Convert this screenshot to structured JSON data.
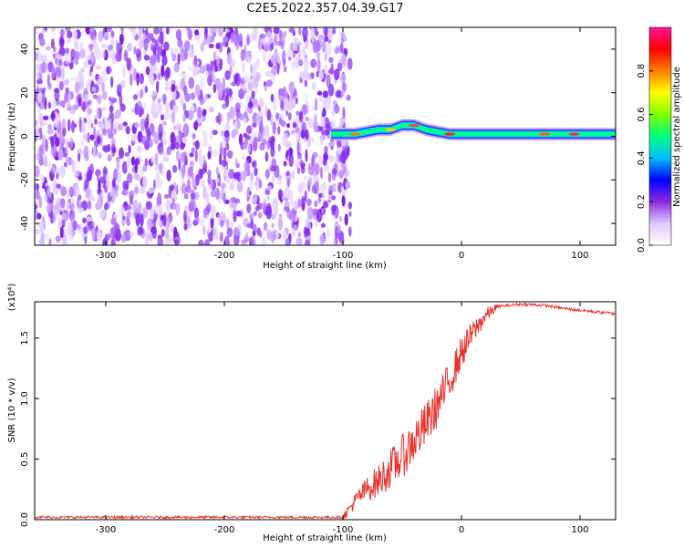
{
  "title": "C2E5.2022.357.04.39.G17",
  "chart_data": [
    {
      "type": "heatmap",
      "xlabel": "Height of straight line (km)",
      "ylabel": "Frequency (Hz)",
      "xlim": [
        -360,
        130
      ],
      "ylim": [
        -50,
        50
      ],
      "xticks": [
        -300,
        -200,
        -100,
        0,
        100
      ],
      "yticks": [
        -40,
        -20,
        0,
        20,
        40
      ],
      "colorbar": {
        "label": "Normalized spectral amplitude",
        "range": [
          0,
          1
        ],
        "ticks": [
          0.0,
          0.2,
          0.4,
          0.6,
          0.8
        ],
        "colors": [
          "#ffffff",
          "#e0c8ff",
          "#8a2be2",
          "#0000ff",
          "#00bfff",
          "#00ff7f",
          "#7fff00",
          "#ffff00",
          "#ff7f00",
          "#ff0000",
          "#ff1493"
        ]
      },
      "noise_region_x": [
        -360,
        -100
      ],
      "signal_ridge": {
        "x": [
          -110,
          -100,
          -90,
          -80,
          -70,
          -60,
          -50,
          -40,
          -30,
          -20,
          -10,
          0,
          20,
          40,
          60,
          80,
          100,
          130
        ],
        "y": [
          1,
          1,
          1,
          2,
          3,
          3,
          5,
          5,
          3,
          2,
          1,
          1,
          1,
          1,
          1,
          1,
          1,
          1
        ]
      }
    },
    {
      "type": "line",
      "xlabel": "Height of straight line (km)",
      "ylabel": "SNR (10 * v/v)",
      "yscale_label": "(x10⁴)",
      "xlim": [
        -360,
        130
      ],
      "ylim": [
        0,
        1.8
      ],
      "xticks": [
        -300,
        -200,
        -100,
        0,
        100
      ],
      "yticks": [
        0.0,
        0.5,
        1.0,
        1.5
      ],
      "line_color": "#e8322c",
      "series": [
        {
          "x": [
            -360,
            -100,
            -90,
            -80,
            -70,
            -60,
            -50,
            -40,
            -30,
            -20,
            -10,
            0,
            10,
            20,
            30,
            50,
            70,
            90,
            110,
            130
          ],
          "values": [
            0.02,
            0.02,
            0.15,
            0.25,
            0.32,
            0.42,
            0.52,
            0.65,
            0.78,
            0.95,
            1.15,
            1.38,
            1.55,
            1.68,
            1.76,
            1.78,
            1.77,
            1.74,
            1.72,
            1.7
          ]
        }
      ]
    }
  ]
}
